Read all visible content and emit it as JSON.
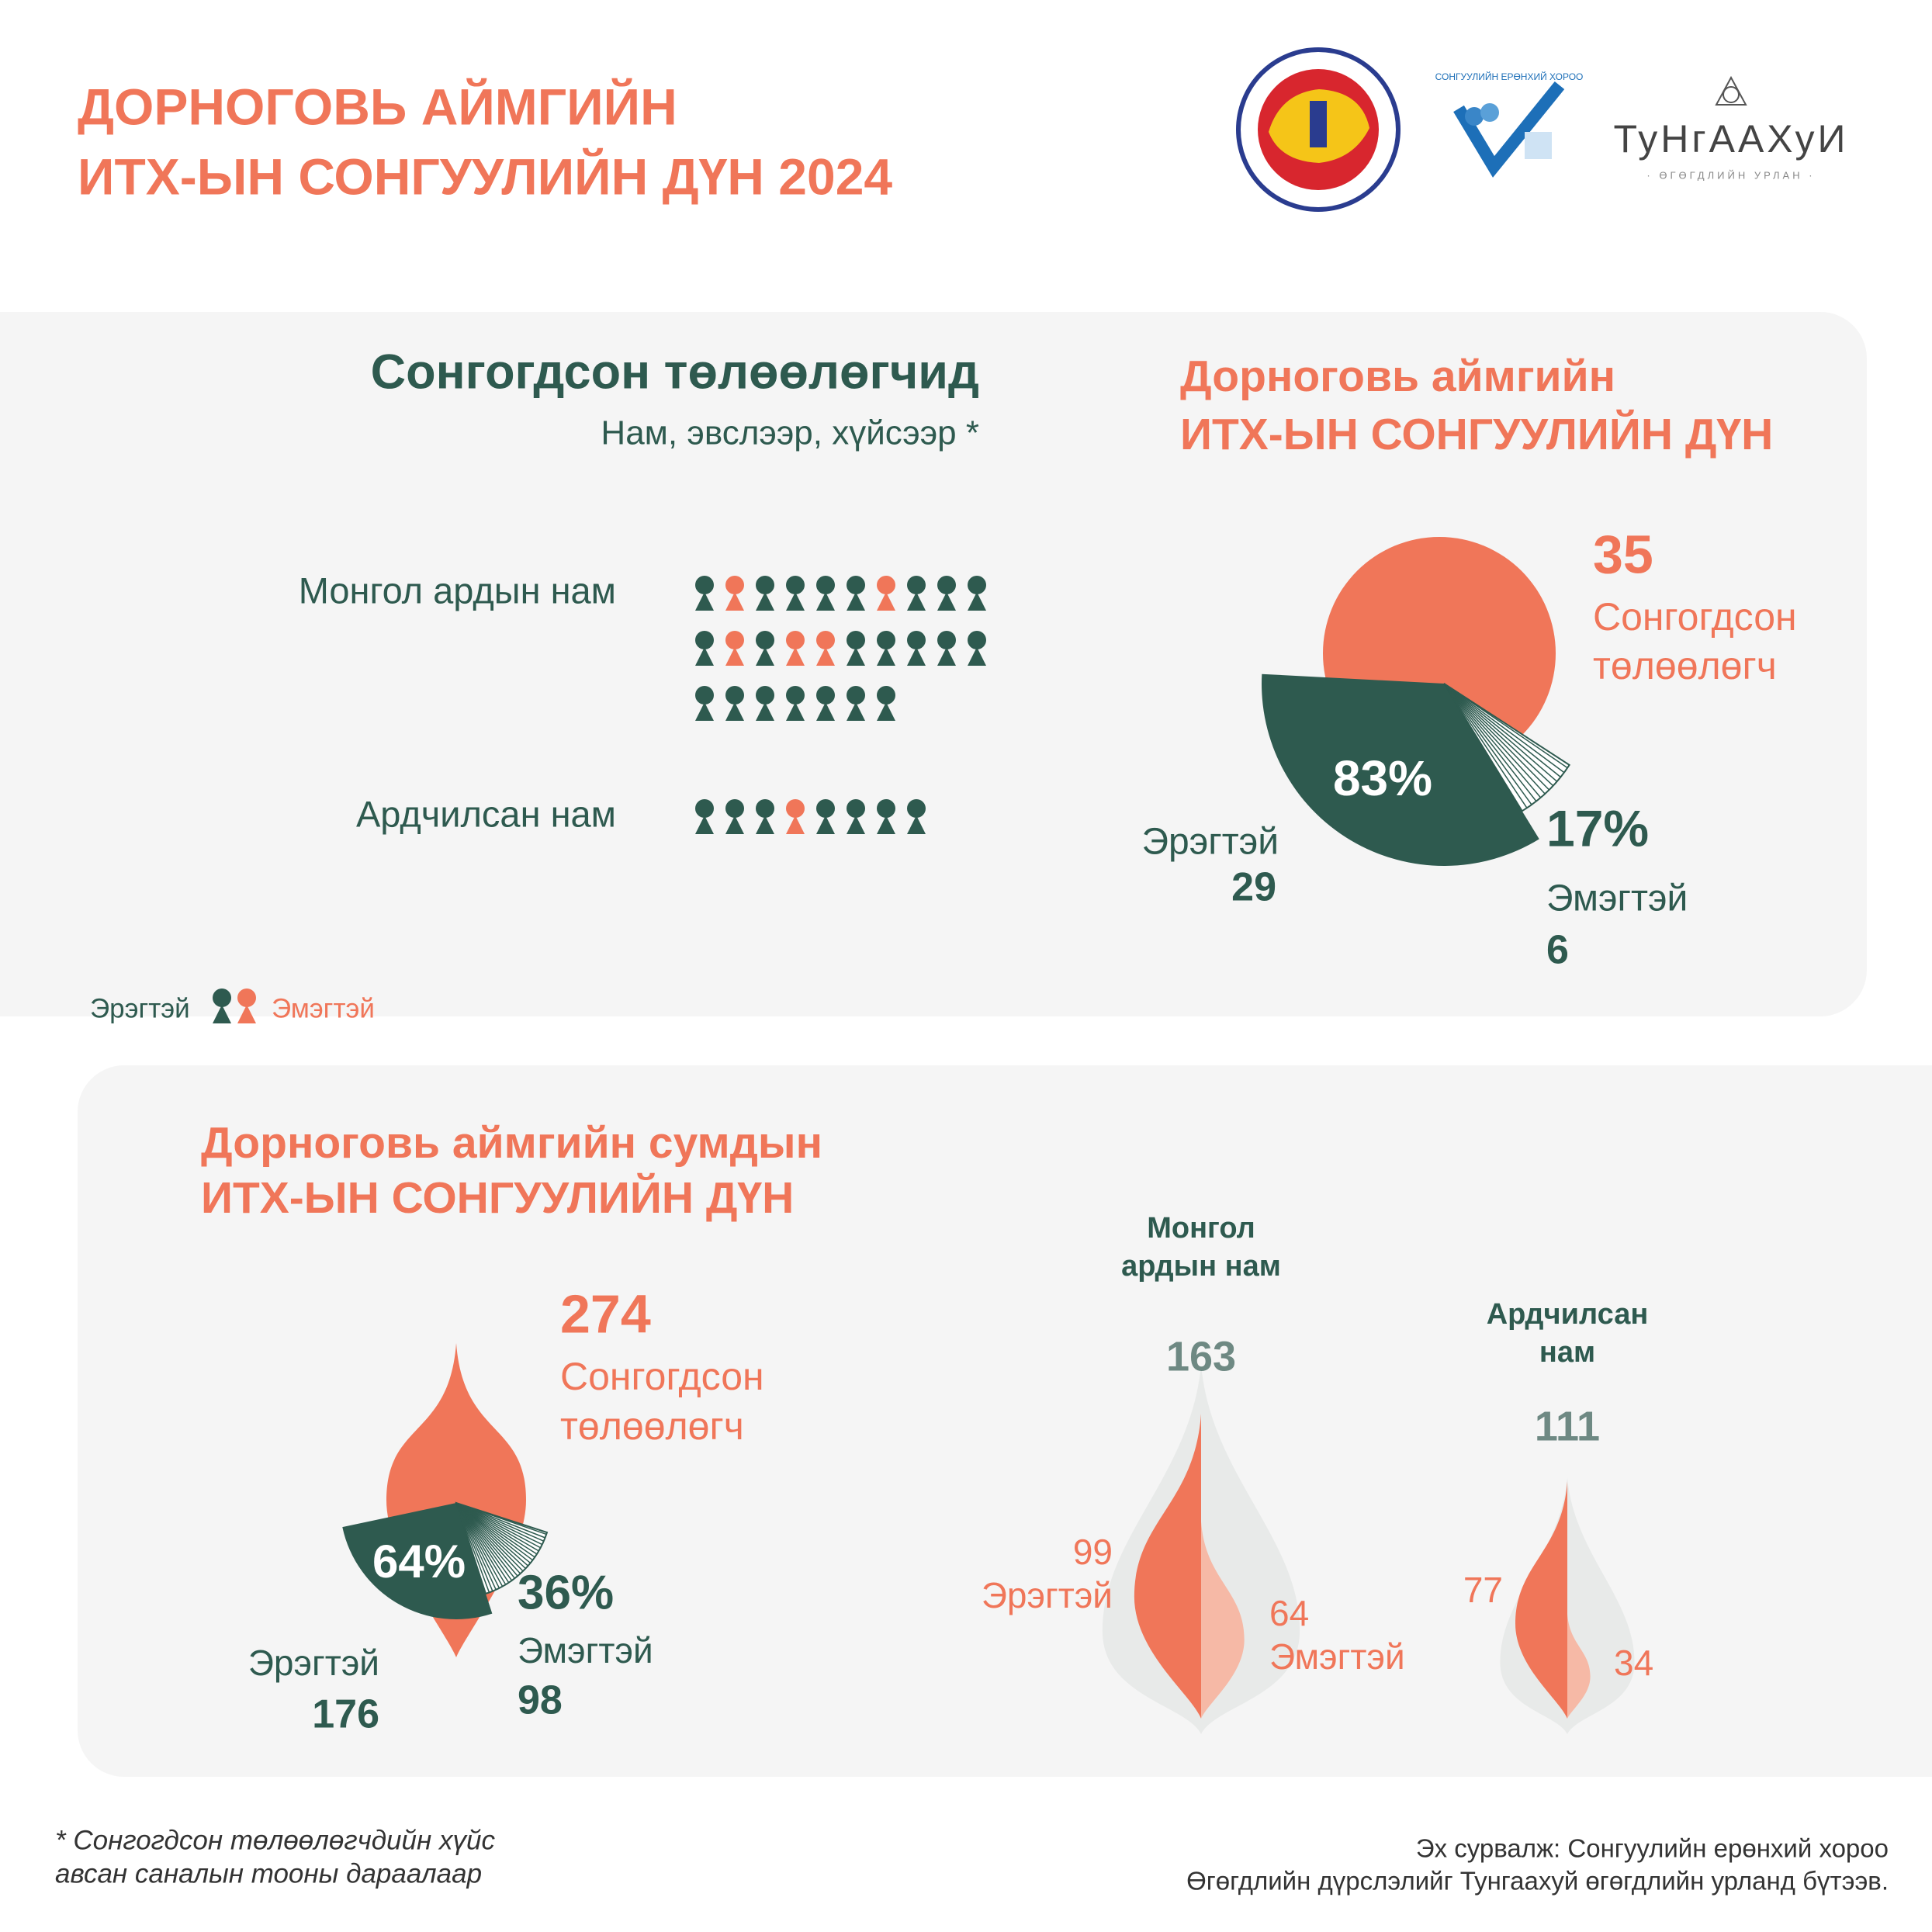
{
  "header": {
    "title_line1": "ДОРНОГОВЬ АЙМГИЙН",
    "title_line2": "ИТХ-ЫН СОНГУУЛИЙН ДҮН 2024"
  },
  "logos": {
    "cec": "СОНГУУЛИЙН ЕРӨНХИЙ ХОРОО",
    "brand": "ТуНгААХуИ",
    "brand_sub": "· ӨГӨГДЛИЙН УРЛАН ·"
  },
  "elected": {
    "title": "Сонгогдсон төлөөлөгчид",
    "subtitle": "Нам, эвслээр, хүйсээр *",
    "parties": [
      {
        "name": "Монгол ардын нам",
        "count": 27,
        "female_positions": [
          2,
          7,
          12,
          14,
          15
        ]
      },
      {
        "name": "Ардчилсан нам",
        "count": 8,
        "female_positions": [
          4
        ]
      }
    ],
    "legend": {
      "male": "Эрэгтэй",
      "female": "Эмэгтэй"
    }
  },
  "aimag": {
    "title_line1": "Дорноговь аймгийн",
    "title_line2": "ИТХ-ЫН СОНГУУЛИЙН ДҮН",
    "total": 35,
    "total_label_1": "Сонгогдсон",
    "total_label_2": "төлөөлөгч",
    "male": {
      "label": "Эрэгтэй",
      "count": 29,
      "percent": 83,
      "percent_label": "83%"
    },
    "female": {
      "label": "Эмэгтэй",
      "count": 6,
      "percent": 17,
      "percent_label": "17%"
    }
  },
  "soum": {
    "title_line1": "Дорноговь аймгийн сумдын",
    "title_line2": "ИТХ-ЫН СОНГУУЛИЙН ДҮН",
    "total": 274,
    "total_label_1": "Сонгогдсон",
    "total_label_2": "төлөөлөгч",
    "male": {
      "label": "Эрэгтэй",
      "count": 176,
      "percent": 64,
      "percent_label": "64%"
    },
    "female": {
      "label": "Эмэгтэй",
      "count": 98,
      "percent": 36,
      "percent_label": "36%"
    },
    "parties": [
      {
        "name_line1": "Монгол",
        "name_line2": "ардын нам",
        "total": 163,
        "male": 99,
        "female": 64,
        "male_label": "Эрэгтэй",
        "female_label": "Эмэгтэй"
      },
      {
        "name_line1": "Ардчилсан",
        "name_line2": "нам",
        "total": 111,
        "male": 77,
        "female": 34
      }
    ]
  },
  "footer": {
    "note_line1": "* Сонгогдсон төлөөлөгчдийн хүйс",
    "note_line2": "авсан саналын тооны дараалаар",
    "source_line1": "Эх сурвалж: Сонгуулийн ерөнхий хороо",
    "source_line2": "Өгөгдлийн дүрслэлийг Тунгаахуй өгөгдлийн урланд бүтээв."
  }
}
